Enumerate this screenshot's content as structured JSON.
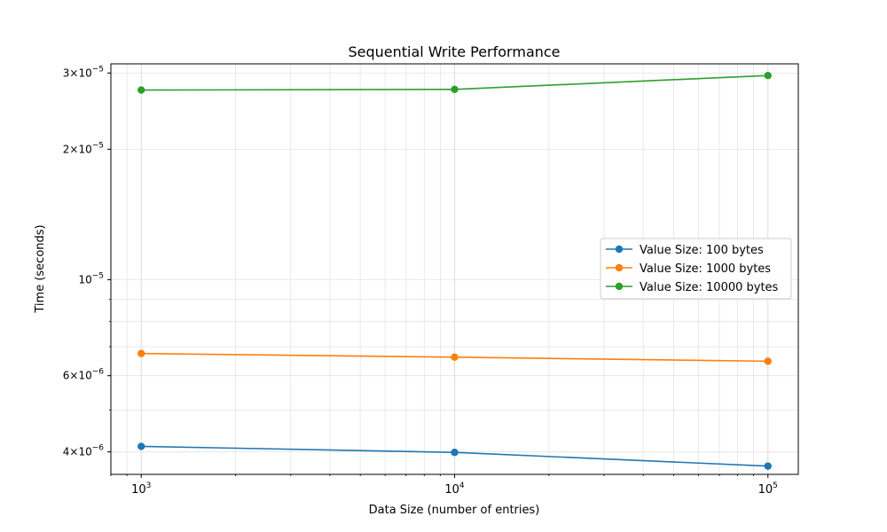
{
  "chart_data": {
    "type": "line",
    "title": "Sequential Write Performance",
    "xlabel": "Data Size (number of entries)",
    "ylabel": "Time (seconds)",
    "x_scale": "log",
    "y_scale": "log",
    "x": [
      1000,
      10000,
      100000
    ],
    "xlim": [
      800,
      125000
    ],
    "ylim": [
      3.55e-06,
      3.15e-05
    ],
    "x_ticks": [
      {
        "value": 1000,
        "base": "10",
        "exp": "3"
      },
      {
        "value": 10000,
        "base": "10",
        "exp": "4"
      },
      {
        "value": 100000,
        "base": "10",
        "exp": "5"
      }
    ],
    "y_ticks": [
      {
        "value": 4e-06,
        "mant": "4",
        "times": "×",
        "base": "10",
        "exp": "−6"
      },
      {
        "value": 6e-06,
        "mant": "6",
        "times": "×",
        "base": "10",
        "exp": "−6"
      },
      {
        "value": 1e-05,
        "mant": "",
        "times": "",
        "base": "10",
        "exp": "−5"
      },
      {
        "value": 2e-05,
        "mant": "2",
        "times": "×",
        "base": "10",
        "exp": "−5"
      },
      {
        "value": 3e-05,
        "mant": "3",
        "times": "×",
        "base": "10",
        "exp": "−5"
      }
    ],
    "grid": true,
    "legend_position": "center-right",
    "series": [
      {
        "name": "Value Size: 100 bytes",
        "color": "#1f77b4",
        "values": [
          4.12e-06,
          3.99e-06,
          3.71e-06
        ]
      },
      {
        "name": "Value Size: 1000 bytes",
        "color": "#ff7f0e",
        "values": [
          6.75e-06,
          6.62e-06,
          6.48e-06
        ]
      },
      {
        "name": "Value Size: 10000 bytes",
        "color": "#2ca02c",
        "values": [
          2.74e-05,
          2.75e-05,
          2.96e-05
        ]
      }
    ]
  }
}
